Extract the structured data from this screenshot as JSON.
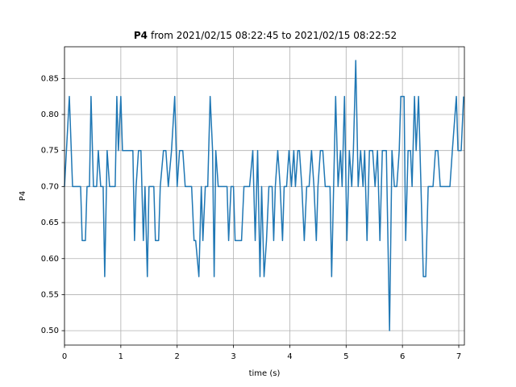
{
  "chart_data": {
    "type": "line",
    "title": {
      "bold": "P4",
      "text": "from 2021/02/15 08:22:45 to 2021/02/15 08:22:52"
    },
    "xlabel": "time (s)",
    "ylabel": "P4",
    "x": [
      0,
      0.086,
      0.143,
      0.286,
      0.314,
      0.371,
      0.4,
      0.443,
      0.471,
      0.514,
      0.571,
      0.6,
      0.643,
      0.686,
      0.714,
      0.757,
      0.8,
      0.9,
      0.929,
      0.957,
      1.0,
      1.029,
      1.214,
      1.243,
      1.271,
      1.314,
      1.357,
      1.4,
      1.429,
      1.471,
      1.5,
      1.586,
      1.614,
      1.671,
      1.7,
      1.757,
      1.8,
      1.843,
      1.9,
      1.957,
      2.0,
      2.043,
      2.1,
      2.143,
      2.257,
      2.3,
      2.329,
      2.386,
      2.429,
      2.457,
      2.5,
      2.543,
      2.586,
      2.629,
      2.657,
      2.686,
      2.729,
      2.843,
      2.886,
      2.914,
      2.957,
      3.0,
      3.029,
      3.143,
      3.186,
      3.286,
      3.343,
      3.386,
      3.429,
      3.471,
      3.5,
      3.543,
      3.586,
      3.629,
      3.686,
      3.714,
      3.743,
      3.786,
      3.829,
      3.871,
      3.9,
      3.943,
      3.986,
      4.029,
      4.071,
      4.1,
      4.143,
      4.171,
      4.214,
      4.257,
      4.3,
      4.343,
      4.386,
      4.429,
      4.471,
      4.5,
      4.543,
      4.586,
      4.629,
      4.714,
      4.743,
      4.814,
      4.857,
      4.9,
      4.929,
      4.971,
      5.014,
      5.057,
      5.1,
      5.129,
      5.171,
      5.214,
      5.257,
      5.3,
      5.329,
      5.371,
      5.414,
      5.471,
      5.514,
      5.557,
      5.6,
      5.643,
      5.714,
      5.771,
      5.814,
      5.857,
      5.9,
      5.943,
      5.971,
      6.029,
      6.057,
      6.1,
      6.143,
      6.171,
      6.214,
      6.243,
      6.286,
      6.329,
      6.371,
      6.414,
      6.457,
      6.543,
      6.586,
      6.629,
      6.671,
      6.843,
      6.886,
      6.957,
      6.986,
      7.043,
      7.086
    ],
    "series": [
      {
        "color": "#1f77b4",
        "values": [
          0.7,
          0.825,
          0.7,
          0.7,
          0.625,
          0.625,
          0.7,
          0.7,
          0.825,
          0.7,
          0.7,
          0.75,
          0.7,
          0.7,
          0.575,
          0.75,
          0.7,
          0.7,
          0.825,
          0.75,
          0.825,
          0.75,
          0.75,
          0.625,
          0.7,
          0.75,
          0.75,
          0.625,
          0.7,
          0.575,
          0.7,
          0.7,
          0.625,
          0.625,
          0.7,
          0.75,
          0.75,
          0.7,
          0.75,
          0.825,
          0.7,
          0.75,
          0.75,
          0.7,
          0.7,
          0.625,
          0.625,
          0.575,
          0.7,
          0.625,
          0.7,
          0.7,
          0.825,
          0.75,
          0.575,
          0.75,
          0.7,
          0.7,
          0.7,
          0.625,
          0.7,
          0.7,
          0.625,
          0.625,
          0.7,
          0.7,
          0.75,
          0.625,
          0.75,
          0.575,
          0.7,
          0.575,
          0.625,
          0.7,
          0.7,
          0.625,
          0.7,
          0.75,
          0.7,
          0.625,
          0.7,
          0.7,
          0.75,
          0.7,
          0.75,
          0.7,
          0.75,
          0.75,
          0.7,
          0.625,
          0.7,
          0.7,
          0.75,
          0.7,
          0.625,
          0.7,
          0.75,
          0.75,
          0.7,
          0.7,
          0.575,
          0.825,
          0.7,
          0.75,
          0.7,
          0.825,
          0.625,
          0.75,
          0.7,
          0.75,
          0.875,
          0.7,
          0.75,
          0.7,
          0.75,
          0.625,
          0.75,
          0.75,
          0.7,
          0.75,
          0.625,
          0.75,
          0.75,
          0.5,
          0.75,
          0.7,
          0.7,
          0.75,
          0.825,
          0.825,
          0.625,
          0.75,
          0.75,
          0.7,
          0.825,
          0.75,
          0.825,
          0.7,
          0.575,
          0.575,
          0.7,
          0.7,
          0.75,
          0.75,
          0.7,
          0.7,
          0.75,
          0.825,
          0.75,
          0.75,
          0.825
        ]
      }
    ],
    "xlim": [
      0,
      7.1
    ],
    "ylim": [
      0.48,
      0.894
    ],
    "xticks": [
      0,
      1,
      2,
      3,
      4,
      5,
      6,
      7
    ],
    "yticks": [
      {
        "value": 0.5,
        "label": "0.50"
      },
      0.55,
      {
        "value": 0.6,
        "label": "0.60"
      },
      0.65,
      {
        "value": 0.7,
        "label": "0.70"
      },
      0.75,
      {
        "value": 0.8,
        "label": "0.80"
      },
      0.85
    ],
    "grid": true
  }
}
